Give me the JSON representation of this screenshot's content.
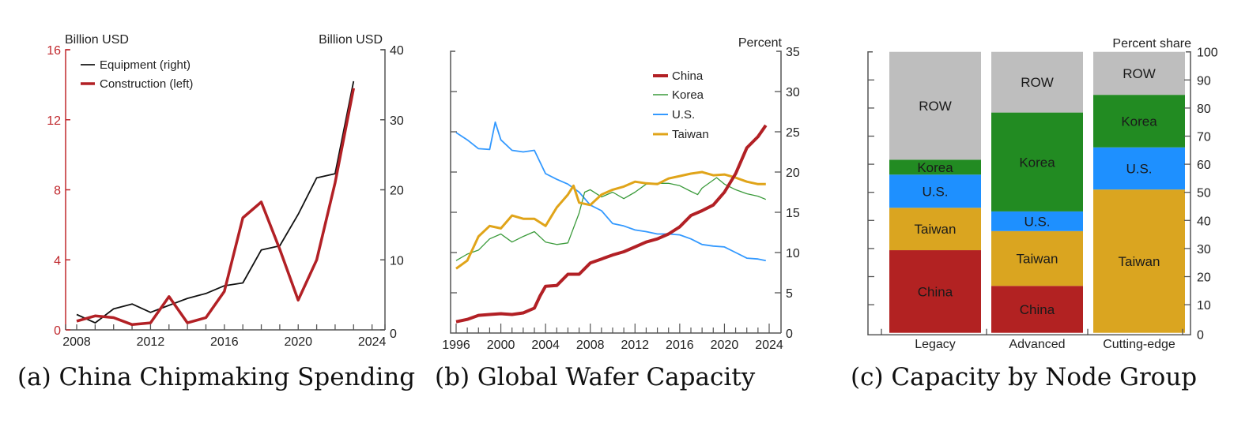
{
  "chart_data": [
    {
      "type": "line",
      "panel": "a",
      "caption": "(a) China Chipmaking Spending",
      "left_axis_title": "Billion USD",
      "right_axis_title": "Billion USD",
      "left_ylim": [
        0,
        16
      ],
      "right_ylim": [
        0,
        40
      ],
      "left_ticks": [
        "0",
        "4",
        "8",
        "12",
        "16"
      ],
      "left_tick_values": [
        0,
        4,
        8,
        12,
        16
      ],
      "right_ticks": [
        "0",
        "10",
        "20",
        "30",
        "40"
      ],
      "right_tick_values": [
        0,
        10,
        20,
        30,
        40
      ],
      "xlim": [
        2007.4,
        2024.7
      ],
      "x_ticks": [
        "2008",
        "2012",
        "2016",
        "2020",
        "2024"
      ],
      "x_tick_values": [
        2008,
        2012,
        2016,
        2020,
        2024
      ],
      "x_minor_ticks": [
        2007.4,
        2008,
        2009,
        2010,
        2011,
        2012,
        2013,
        2014,
        2015,
        2016,
        2017,
        2018,
        2019,
        2020,
        2021,
        2022,
        2023,
        2024,
        2024.7
      ],
      "legend": [
        "Equipment (right)",
        "Construction (left)"
      ],
      "legend_position": "top-left",
      "x": [
        2008,
        2009,
        2010,
        2011,
        2012,
        2013,
        2014,
        2015,
        2016,
        2017,
        2018,
        2019,
        2020,
        2021,
        2022,
        2023
      ],
      "series": [
        {
          "name": "Equipment (right)",
          "axis": "right",
          "color": "#111111",
          "values": [
            2.2,
            1.0,
            3.0,
            3.7,
            2.5,
            3.5,
            4.5,
            5.2,
            6.3,
            6.7,
            11.4,
            12.0,
            16.5,
            21.7,
            22.3,
            35.5
          ]
        },
        {
          "name": "Construction (left)",
          "axis": "left",
          "color": "#b22025",
          "values": [
            0.5,
            0.8,
            0.7,
            0.3,
            0.4,
            1.9,
            0.4,
            0.7,
            2.2,
            6.4,
            7.3,
            4.6,
            1.7,
            4.0,
            8.4,
            13.8
          ]
        }
      ],
      "left_axis_color": "#c0282d"
    },
    {
      "type": "line",
      "panel": "b",
      "caption": "(b) Global Wafer Capacity",
      "right_axis_title": "Percent",
      "ylim": [
        0,
        35
      ],
      "y_ticks": [
        "0",
        "5",
        "10",
        "15",
        "20",
        "25",
        "30",
        "35"
      ],
      "y_tick_values": [
        0,
        5,
        10,
        15,
        20,
        25,
        30,
        35
      ],
      "xlim": [
        1995.5,
        2025
      ],
      "x_ticks": [
        "1996",
        "2000",
        "2004",
        "2008",
        "2012",
        "2016",
        "2020",
        "2024"
      ],
      "x_tick_values": [
        1996,
        2000,
        2004,
        2008,
        2012,
        2016,
        2020,
        2024
      ],
      "legend": [
        "China",
        "Korea",
        "U.S.",
        "Taiwan"
      ],
      "legend_position": "top-right",
      "series": [
        {
          "name": "China",
          "color": "#b22025",
          "x": [
            1996,
            1997,
            1998,
            1999,
            2000,
            2001,
            2002,
            2003,
            2003.5,
            2004,
            2005,
            2006,
            2007,
            2008,
            2009,
            2010,
            2011,
            2012,
            2013,
            2014,
            2015,
            2016,
            2017,
            2018,
            2019,
            2020,
            2021,
            2022,
            2023,
            2023.7
          ],
          "values": [
            1.4,
            1.7,
            2.2,
            2.3,
            2.4,
            2.3,
            2.5,
            3.1,
            4.6,
            5.8,
            5.9,
            7.3,
            7.3,
            8.7,
            9.2,
            9.7,
            10.1,
            10.7,
            11.3,
            11.7,
            12.3,
            13.2,
            14.6,
            15.2,
            15.9,
            17.5,
            19.8,
            23.0,
            24.4,
            25.8
          ]
        },
        {
          "name": "Korea",
          "color": "#3a9a3a",
          "x": [
            1996,
            1997,
            1998,
            1999,
            2000,
            2001,
            2002,
            2003,
            2004,
            2005,
            2006,
            2007,
            2007.5,
            2008,
            2009,
            2010,
            2011,
            2012,
            2013,
            2014,
            2015,
            2016,
            2017,
            2017.6,
            2018,
            2019.3,
            2020,
            2021,
            2022,
            2023,
            2023.7
          ],
          "values": [
            9.0,
            9.8,
            10.3,
            11.7,
            12.3,
            11.3,
            12.0,
            12.6,
            11.3,
            11.0,
            11.2,
            14.9,
            17.5,
            17.8,
            16.9,
            17.5,
            16.7,
            17.5,
            18.5,
            18.6,
            18.6,
            18.3,
            17.6,
            17.2,
            18.0,
            19.3,
            18.5,
            17.8,
            17.3,
            17.0,
            16.6
          ]
        },
        {
          "name": "U.S.",
          "color": "#3399ff",
          "x": [
            1996,
            1997,
            1998,
            1999,
            1999.5,
            2000,
            2001,
            2002,
            2003,
            2004,
            2005,
            2006,
            2007,
            2008,
            2009,
            2010,
            2011,
            2012,
            2013,
            2014,
            2015,
            2016,
            2017,
            2018,
            2019,
            2020,
            2021,
            2022,
            2023,
            2023.7
          ],
          "values": [
            24.9,
            24.0,
            22.9,
            22.8,
            26.2,
            24.0,
            22.7,
            22.5,
            22.7,
            19.8,
            19.1,
            18.5,
            17.5,
            15.9,
            15.2,
            13.6,
            13.3,
            12.8,
            12.6,
            12.3,
            12.3,
            12.2,
            11.7,
            11.0,
            10.8,
            10.7,
            10.0,
            9.3,
            9.2,
            9.0
          ]
        },
        {
          "name": "Taiwan",
          "color": "#e0a419",
          "x": [
            1996,
            1997,
            1998,
            1999,
            2000,
            2001,
            2002,
            2003,
            2004,
            2005,
            2006,
            2006.5,
            2007,
            2008,
            2009,
            2010,
            2011,
            2012,
            2013,
            2014,
            2015,
            2016,
            2017,
            2018,
            2019,
            2020,
            2021,
            2022,
            2023,
            2023.7
          ],
          "values": [
            8.0,
            9.0,
            12.0,
            13.3,
            13.0,
            14.6,
            14.2,
            14.2,
            13.3,
            15.6,
            17.2,
            18.3,
            16.2,
            15.9,
            17.2,
            17.8,
            18.2,
            18.8,
            18.6,
            18.5,
            19.2,
            19.5,
            19.8,
            20.0,
            19.6,
            19.7,
            19.3,
            18.8,
            18.5,
            18.5
          ]
        }
      ]
    },
    {
      "type": "bar",
      "stacked": true,
      "panel": "c",
      "caption": "(c) Capacity by Node Group",
      "right_axis_title": "Percent share",
      "ylim": [
        0,
        100
      ],
      "y_ticks": [
        "0",
        "10",
        "20",
        "30",
        "40",
        "50",
        "60",
        "70",
        "80",
        "90",
        "100"
      ],
      "y_tick_values": [
        0,
        10,
        20,
        30,
        40,
        50,
        60,
        70,
        80,
        90,
        100
      ],
      "categories": [
        "Legacy",
        "Advanced",
        "Cutting-edge"
      ],
      "series": [
        {
          "name": "China",
          "label": "China",
          "color": "#b22222",
          "values": [
            29.4,
            16.7,
            0
          ]
        },
        {
          "name": "Taiwan",
          "label": "Taiwan",
          "color": "#daa520",
          "values": [
            15.1,
            19.5,
            51.0
          ]
        },
        {
          "name": "U.S.",
          "label": "U.S.",
          "color": "#1e90ff",
          "values": [
            11.8,
            7.0,
            15.0
          ]
        },
        {
          "name": "Korea",
          "label": "Korea",
          "color": "#228b22",
          "values": [
            5.3,
            35.2,
            18.7
          ]
        },
        {
          "name": "ROW",
          "label": "ROW",
          "color": "#bebebe",
          "values": [
            38.4,
            21.6,
            15.3
          ]
        }
      ]
    }
  ]
}
